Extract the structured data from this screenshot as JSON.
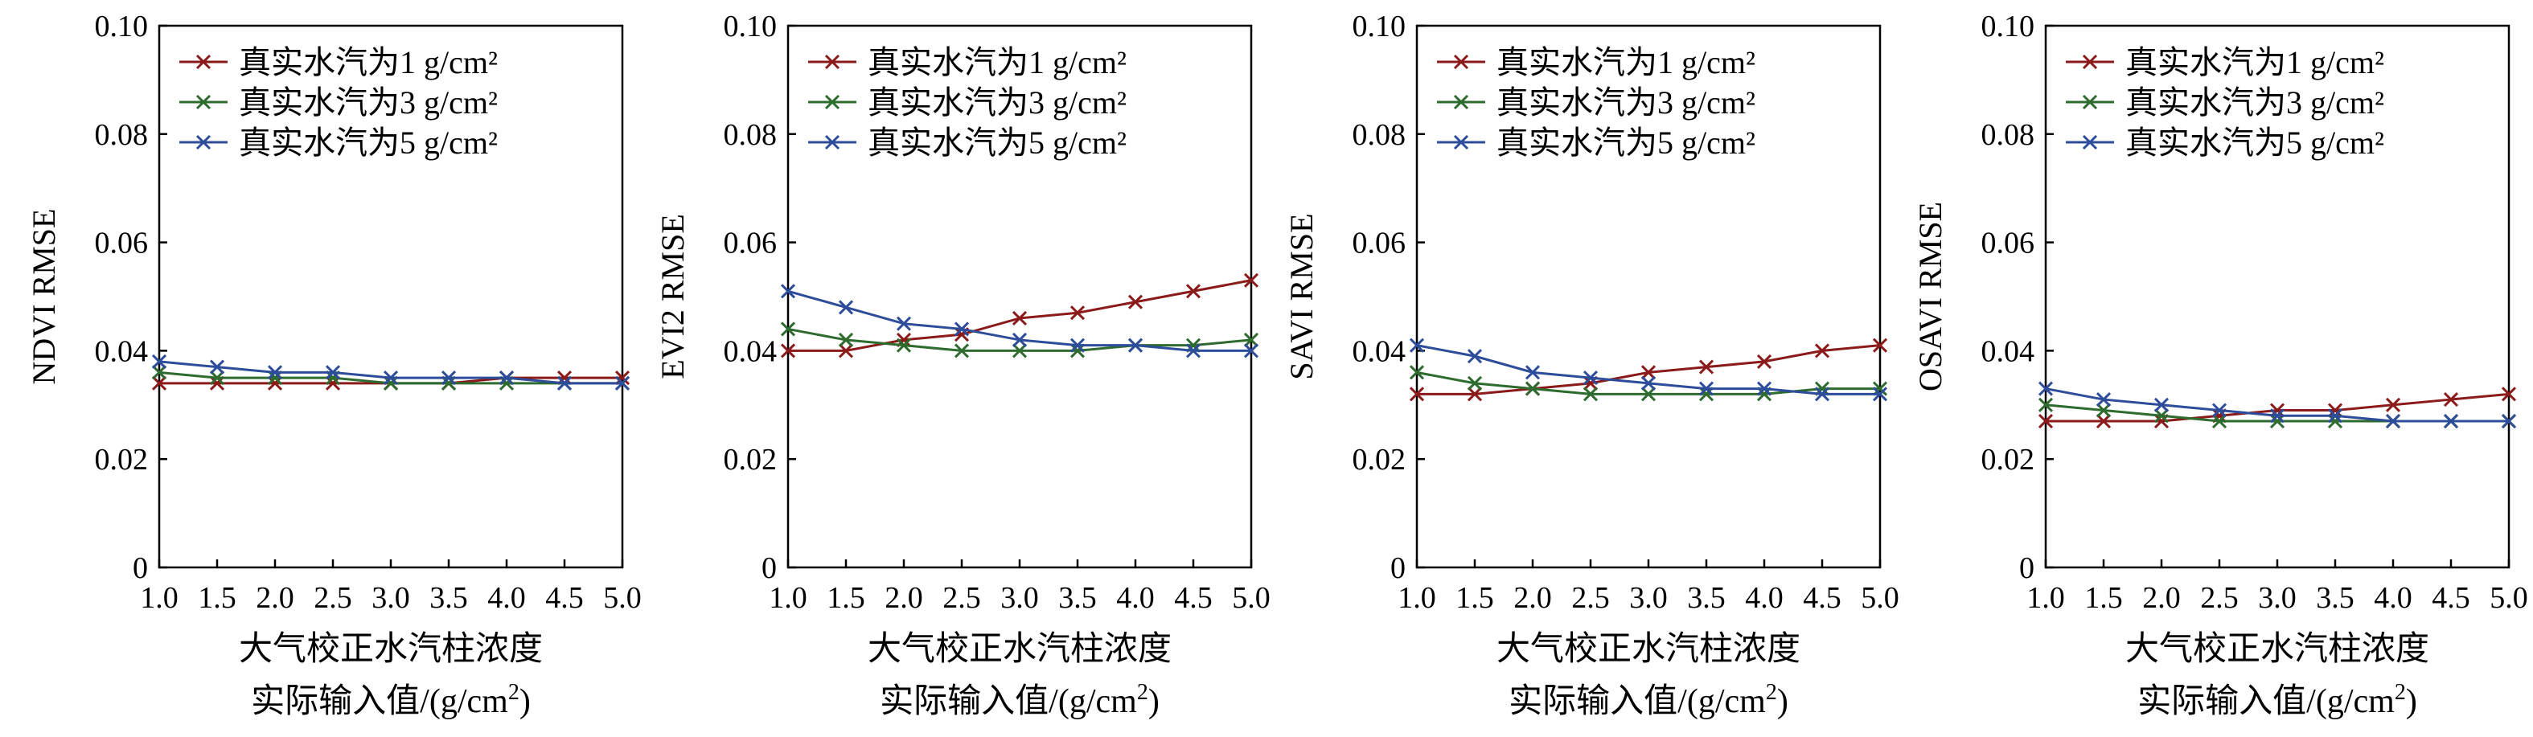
{
  "colors": {
    "series": [
      "#8B1A1A",
      "#2E6B2E",
      "#2D4D9B"
    ],
    "axis": "#000000"
  },
  "xtick_labels": [
    "1.0",
    "1.5",
    "2.0",
    "2.5",
    "3.0",
    "3.5",
    "4.0",
    "4.5",
    "5.0"
  ],
  "ytick_labels": [
    "0",
    "0.02",
    "0.04",
    "0.06",
    "0.08",
    "0.10"
  ],
  "xlabel_line1": "大气校正水汽柱浓度",
  "xlabel_line2": "实际输入值/(g/cm",
  "xlabel_line2_sup": "2",
  "xlabel_line2_end": ")",
  "legend_labels": [
    "真实水汽为1 g/cm²",
    "真实水汽为3 g/cm²",
    "真实水汽为5 g/cm²"
  ],
  "chart_data": [
    {
      "type": "line",
      "ylabel": "NDVI RMSE",
      "xlabel": "大气校正水汽柱浓度 实际输入值/(g/cm²)",
      "x": [
        1.0,
        1.5,
        2.0,
        2.5,
        3.0,
        3.5,
        4.0,
        4.5,
        5.0
      ],
      "xlim": [
        1.0,
        5.0
      ],
      "ylim": [
        0,
        0.1
      ],
      "legend": "top-left",
      "series": [
        {
          "name": "真实水汽为1 g/cm²",
          "values": [
            0.034,
            0.034,
            0.034,
            0.034,
            0.034,
            0.034,
            0.035,
            0.035,
            0.035
          ]
        },
        {
          "name": "真实水汽为3 g/cm²",
          "values": [
            0.036,
            0.035,
            0.035,
            0.035,
            0.034,
            0.034,
            0.034,
            0.034,
            0.034
          ]
        },
        {
          "name": "真实水汽为5 g/cm²",
          "values": [
            0.038,
            0.037,
            0.036,
            0.036,
            0.035,
            0.035,
            0.035,
            0.034,
            0.034
          ]
        }
      ]
    },
    {
      "type": "line",
      "ylabel": "EVI2 RMSE",
      "xlabel": "大气校正水汽柱浓度 实际输入值/(g/cm²)",
      "x": [
        1.0,
        1.5,
        2.0,
        2.5,
        3.0,
        3.5,
        4.0,
        4.5,
        5.0
      ],
      "xlim": [
        1.0,
        5.0
      ],
      "ylim": [
        0,
        0.1
      ],
      "legend": "top-left",
      "series": [
        {
          "name": "真实水汽为1 g/cm²",
          "values": [
            0.04,
            0.04,
            0.042,
            0.043,
            0.046,
            0.047,
            0.049,
            0.051,
            0.053
          ]
        },
        {
          "name": "真实水汽为3 g/cm²",
          "values": [
            0.044,
            0.042,
            0.041,
            0.04,
            0.04,
            0.04,
            0.041,
            0.041,
            0.042
          ]
        },
        {
          "name": "真实水汽为5 g/cm²",
          "values": [
            0.051,
            0.048,
            0.045,
            0.044,
            0.042,
            0.041,
            0.041,
            0.04,
            0.04
          ]
        }
      ]
    },
    {
      "type": "line",
      "ylabel": "SAVI RMSE",
      "xlabel": "大气校正水汽柱浓度 实际输入值/(g/cm²)",
      "x": [
        1.0,
        1.5,
        2.0,
        2.5,
        3.0,
        3.5,
        4.0,
        4.5,
        5.0
      ],
      "xlim": [
        1.0,
        5.0
      ],
      "ylim": [
        0,
        0.1
      ],
      "legend": "top-left",
      "series": [
        {
          "name": "真实水汽为1 g/cm²",
          "values": [
            0.032,
            0.032,
            0.033,
            0.034,
            0.036,
            0.037,
            0.038,
            0.04,
            0.041
          ]
        },
        {
          "name": "真实水汽为3 g/cm²",
          "values": [
            0.036,
            0.034,
            0.033,
            0.032,
            0.032,
            0.032,
            0.032,
            0.033,
            0.033
          ]
        },
        {
          "name": "真实水汽为5 g/cm²",
          "values": [
            0.041,
            0.039,
            0.036,
            0.035,
            0.034,
            0.033,
            0.033,
            0.032,
            0.032
          ]
        }
      ]
    },
    {
      "type": "line",
      "ylabel": "OSAVI RMSE",
      "xlabel": "大气校正水汽柱浓度 实际输入值/(g/cm²)",
      "x": [
        1.0,
        1.5,
        2.0,
        2.5,
        3.0,
        3.5,
        4.0,
        4.5,
        5.0
      ],
      "xlim": [
        1.0,
        5.0
      ],
      "ylim": [
        0,
        0.1
      ],
      "legend": "top-left",
      "series": [
        {
          "name": "真实水汽为1 g/cm²",
          "values": [
            0.027,
            0.027,
            0.027,
            0.028,
            0.029,
            0.029,
            0.03,
            0.031,
            0.032
          ]
        },
        {
          "name": "真实水汽为3 g/cm²",
          "values": [
            0.03,
            0.029,
            0.028,
            0.027,
            0.027,
            0.027,
            0.027,
            0.027,
            0.027
          ]
        },
        {
          "name": "真实水汽为5 g/cm²",
          "values": [
            0.033,
            0.031,
            0.03,
            0.029,
            0.028,
            0.028,
            0.027,
            0.027,
            0.027
          ]
        }
      ]
    }
  ]
}
